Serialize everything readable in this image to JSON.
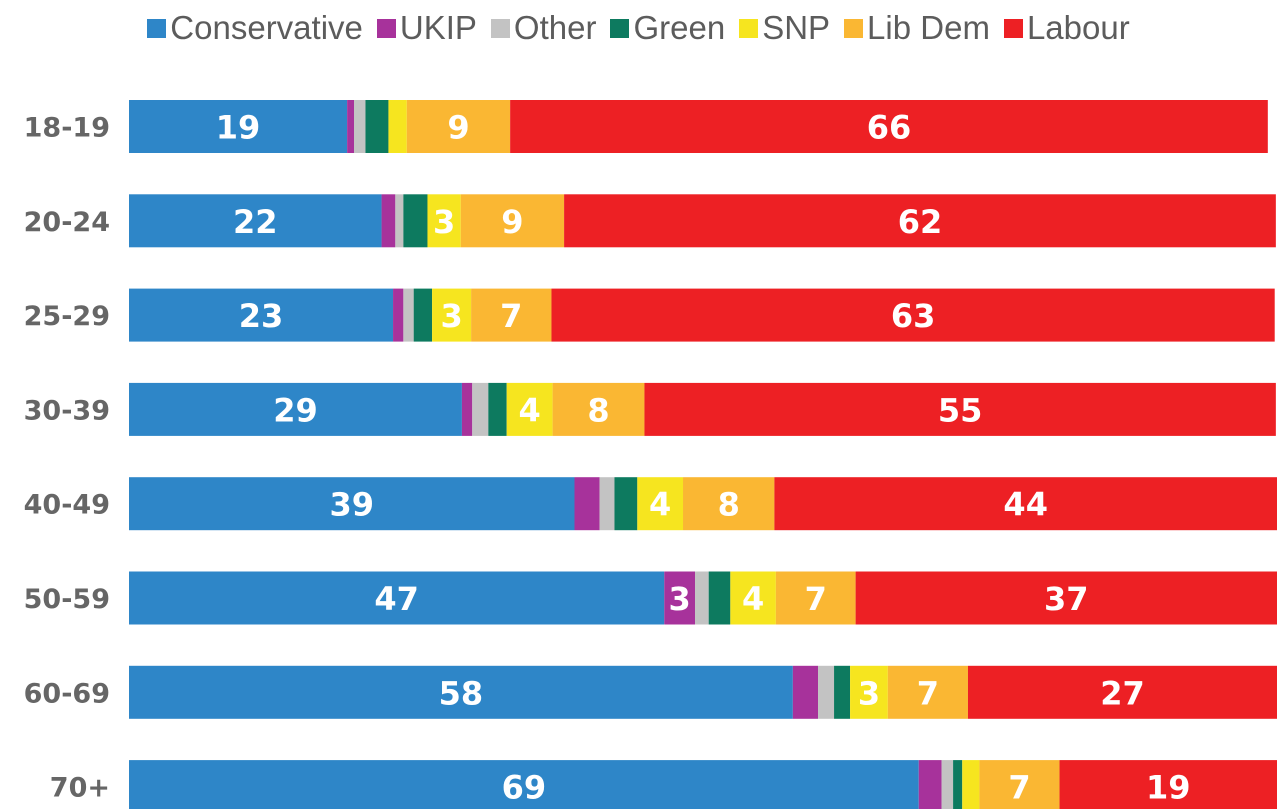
{
  "chart_data": {
    "type": "bar",
    "orientation": "horizontal",
    "stacked": true,
    "legend_position": "top",
    "categories": [
      "18-19",
      "20-24",
      "25-29",
      "30-39",
      "40-49",
      "50-59",
      "60-69",
      "70+"
    ],
    "xlim": [
      0,
      100
    ],
    "series": [
      {
        "name": "Conservative",
        "color": "#2e86c8",
        "values": [
          19,
          22,
          23,
          29,
          39,
          47,
          58,
          69
        ],
        "labels": [
          "19",
          "22",
          "23",
          "29",
          "39",
          "47",
          "58",
          "69"
        ]
      },
      {
        "name": "UKIP",
        "color": "#a7329b",
        "values": [
          0.6,
          1.2,
          0.9,
          0.9,
          2.2,
          2.7,
          2.2,
          2.0
        ],
        "labels": [
          "",
          "",
          "",
          "",
          "",
          "3",
          "",
          ""
        ]
      },
      {
        "name": "Other",
        "color": "#c3c3c3",
        "values": [
          1.0,
          0.7,
          0.9,
          1.4,
          1.3,
          1.2,
          1.4,
          1.0
        ],
        "labels": [
          "",
          "",
          "",
          "",
          "",
          "",
          "",
          ""
        ]
      },
      {
        "name": "Green",
        "color": "#0d7a5f",
        "values": [
          2.0,
          2.1,
          1.6,
          1.6,
          2.0,
          1.9,
          1.4,
          0.8
        ],
        "labels": [
          "",
          "",
          "",
          "",
          "",
          "",
          "",
          ""
        ]
      },
      {
        "name": "SNP",
        "color": "#f6e51f",
        "values": [
          1.6,
          2.9,
          3.4,
          4.0,
          4.0,
          4.0,
          3.3,
          1.5
        ],
        "labels": [
          "",
          "3",
          "3",
          "4",
          "4",
          "4",
          "3",
          ""
        ]
      },
      {
        "name": "Lib Dem",
        "color": "#fab733",
        "values": [
          9,
          9,
          7,
          8,
          8,
          7,
          7,
          7
        ],
        "labels": [
          "9",
          "9",
          "7",
          "8",
          "8",
          "7",
          "7",
          "7"
        ]
      },
      {
        "name": "Labour",
        "color": "#ed2024",
        "values": [
          66,
          62,
          63,
          55,
          44,
          37,
          27,
          19
        ],
        "labels": [
          "66",
          "62",
          "63",
          "55",
          "44",
          "37",
          "27",
          "19"
        ]
      }
    ]
  }
}
